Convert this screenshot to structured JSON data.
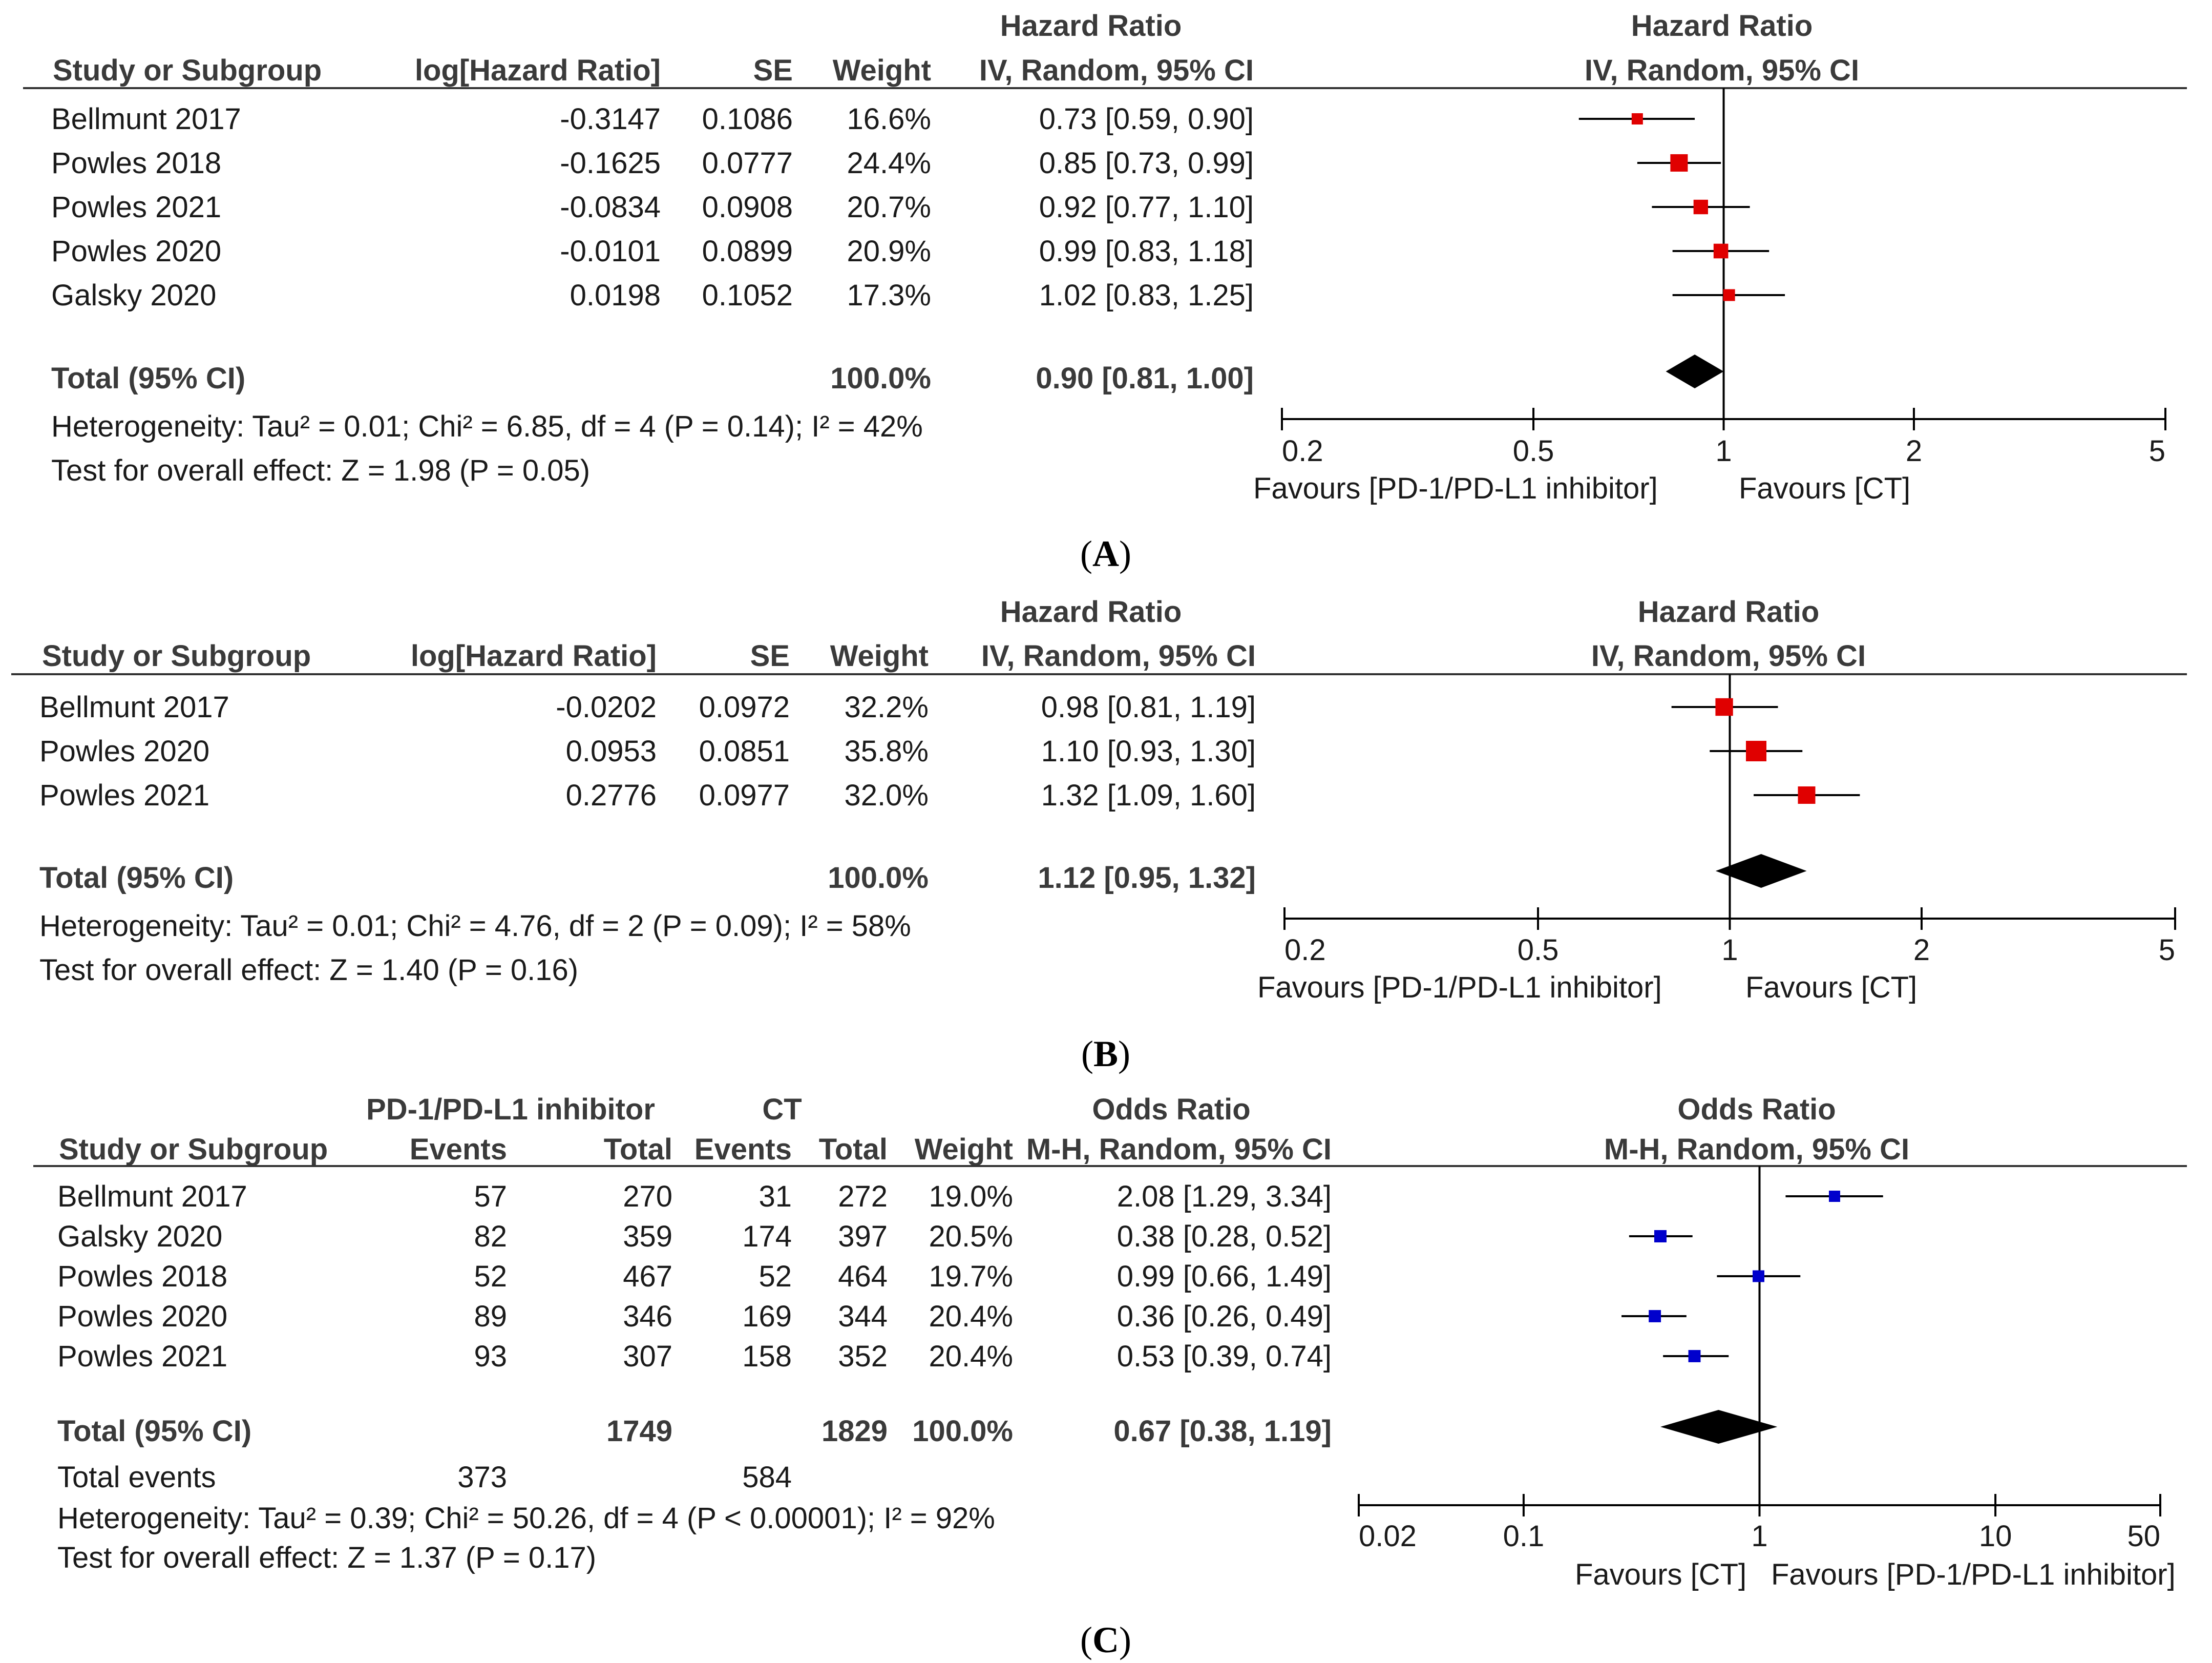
{
  "panel_labels": {
    "a": {
      "open": "(",
      "letter": "A",
      "close": ")"
    },
    "b": {
      "open": "(",
      "letter": "B",
      "close": ")"
    },
    "c": {
      "open": "(",
      "letter": "C",
      "close": ")"
    }
  },
  "chart_data": [
    {
      "type": "forest",
      "panel": "A",
      "effect_measure": "Hazard Ratio",
      "method": "IV, Random, 95% CI",
      "columns": {
        "study": "Study or Subgroup",
        "log": "log[Hazard Ratio]",
        "se": "SE",
        "weight": "Weight",
        "effect": "Hazard Ratio",
        "effect_method": "IV, Random, 95% CI"
      },
      "plot_header": {
        "title": "Hazard Ratio",
        "method": "IV, Random, 95% CI"
      },
      "studies": [
        {
          "name": "Bellmunt 2017",
          "log": "-0.3147",
          "se": "0.1086",
          "weight": "16.6%",
          "ci_text": "0.73 [0.59, 0.90]",
          "est": 0.73,
          "lo": 0.59,
          "hi": 0.9
        },
        {
          "name": "Powles 2018",
          "log": "-0.1625",
          "se": "0.0777",
          "weight": "24.4%",
          "ci_text": "0.85 [0.73, 0.99]",
          "est": 0.85,
          "lo": 0.73,
          "hi": 0.99
        },
        {
          "name": "Powles 2021",
          "log": "-0.0834",
          "se": "0.0908",
          "weight": "20.7%",
          "ci_text": "0.92 [0.77, 1.10]",
          "est": 0.92,
          "lo": 0.77,
          "hi": 1.1
        },
        {
          "name": "Powles 2020",
          "log": "-0.0101",
          "se": "0.0899",
          "weight": "20.9%",
          "ci_text": "0.99 [0.83, 1.18]",
          "est": 0.99,
          "lo": 0.83,
          "hi": 1.18
        },
        {
          "name": "Galsky 2020",
          "log": "0.0198",
          "se": "0.1052",
          "weight": "17.3%",
          "ci_text": "1.02 [0.83, 1.25]",
          "est": 1.02,
          "lo": 0.83,
          "hi": 1.25
        }
      ],
      "total": {
        "label": "Total (95% CI)",
        "weight": "100.0%",
        "ci_text": "0.90 [0.81, 1.00]",
        "est": 0.9,
        "lo": 0.81,
        "hi": 1.0
      },
      "heterogeneity": "Heterogeneity: Tau² = 0.01; Chi² = 6.85, df = 4 (P = 0.14); I² = 42%",
      "overall_effect": "Test for overall effect: Z = 1.98 (P = 0.05)",
      "axis": {
        "scale": "log",
        "ticks": [
          0.2,
          0.5,
          1,
          2,
          5
        ],
        "tick_labels": [
          "0.2",
          "0.5",
          "1",
          "2",
          "5"
        ],
        "range": [
          0.2,
          5
        ]
      },
      "favours_left": "Favours [PD-1/PD-L1 inhibitor]",
      "favours_right": "Favours [CT]",
      "marker_color": "#e00000"
    },
    {
      "type": "forest",
      "panel": "B",
      "effect_measure": "Hazard Ratio",
      "method": "IV, Random, 95% CI",
      "columns": {
        "study": "Study or Subgroup",
        "log": "log[Hazard Ratio]",
        "se": "SE",
        "weight": "Weight",
        "effect": "Hazard Ratio",
        "effect_method": "IV, Random, 95% CI"
      },
      "plot_header": {
        "title": "Hazard Ratio",
        "method": "IV, Random, 95% CI"
      },
      "studies": [
        {
          "name": "Bellmunt 2017",
          "log": "-0.0202",
          "se": "0.0972",
          "weight": "32.2%",
          "ci_text": "0.98 [0.81, 1.19]",
          "est": 0.98,
          "lo": 0.81,
          "hi": 1.19
        },
        {
          "name": "Powles 2020",
          "log": "0.0953",
          "se": "0.0851",
          "weight": "35.8%",
          "ci_text": "1.10 [0.93, 1.30]",
          "est": 1.1,
          "lo": 0.93,
          "hi": 1.3
        },
        {
          "name": "Powles 2021",
          "log": "0.2776",
          "se": "0.0977",
          "weight": "32.0%",
          "ci_text": "1.32 [1.09, 1.60]",
          "est": 1.32,
          "lo": 1.09,
          "hi": 1.6
        }
      ],
      "total": {
        "label": "Total (95% CI)",
        "weight": "100.0%",
        "ci_text": "1.12 [0.95, 1.32]",
        "est": 1.12,
        "lo": 0.95,
        "hi": 1.32
      },
      "heterogeneity": "Heterogeneity: Tau² = 0.01; Chi² = 4.76, df = 2 (P = 0.09); I² = 58%",
      "overall_effect": "Test for overall effect: Z = 1.40 (P = 0.16)",
      "axis": {
        "scale": "log",
        "ticks": [
          0.2,
          0.5,
          1,
          2,
          5
        ],
        "tick_labels": [
          "0.2",
          "0.5",
          "1",
          "2",
          "5"
        ],
        "range": [
          0.2,
          5
        ]
      },
      "favours_left": "Favours [PD-1/PD-L1 inhibitor]",
      "favours_right": "Favours [CT]",
      "marker_color": "#e00000"
    },
    {
      "type": "forest",
      "panel": "C",
      "effect_measure": "Odds Ratio",
      "method": "M-H, Random, 95% CI",
      "columns": {
        "group1": "PD-1/PD-L1 inhibitor",
        "group2": "CT",
        "study": "Study or Subgroup",
        "events": "Events",
        "total": "Total",
        "weight": "Weight",
        "effect": "Odds Ratio",
        "effect_method": "M-H, Random, 95% CI"
      },
      "plot_header": {
        "title": "Odds Ratio",
        "method": "M-H, Random, 95% CI"
      },
      "studies": [
        {
          "name": "Bellmunt 2017",
          "e1": "57",
          "n1": "270",
          "e2": "31",
          "n2": "272",
          "weight": "19.0%",
          "ci_text": "2.08 [1.29, 3.34]",
          "est": 2.08,
          "lo": 1.29,
          "hi": 3.34
        },
        {
          "name": "Galsky 2020",
          "e1": "82",
          "n1": "359",
          "e2": "174",
          "n2": "397",
          "weight": "20.5%",
          "ci_text": "0.38 [0.28, 0.52]",
          "est": 0.38,
          "lo": 0.28,
          "hi": 0.52
        },
        {
          "name": "Powles 2018",
          "e1": "52",
          "n1": "467",
          "e2": "52",
          "n2": "464",
          "weight": "19.7%",
          "ci_text": "0.99 [0.66, 1.49]",
          "est": 0.99,
          "lo": 0.66,
          "hi": 1.49
        },
        {
          "name": "Powles 2020",
          "e1": "89",
          "n1": "346",
          "e2": "169",
          "n2": "344",
          "weight": "20.4%",
          "ci_text": "0.36 [0.26, 0.49]",
          "est": 0.36,
          "lo": 0.26,
          "hi": 0.49
        },
        {
          "name": "Powles 2021",
          "e1": "93",
          "n1": "307",
          "e2": "158",
          "n2": "352",
          "weight": "20.4%",
          "ci_text": "0.53 [0.39, 0.74]",
          "est": 0.53,
          "lo": 0.39,
          "hi": 0.74
        }
      ],
      "total": {
        "label": "Total (95% CI)",
        "n1": "1749",
        "n2": "1829",
        "weight": "100.0%",
        "ci_text": "0.67 [0.38, 1.19]",
        "est": 0.67,
        "lo": 0.38,
        "hi": 1.19
      },
      "total_events": {
        "label": "Total events",
        "e1": "373",
        "e2": "584"
      },
      "heterogeneity": "Heterogeneity: Tau² = 0.39; Chi² = 50.26, df = 4 (P < 0.00001); I² = 92%",
      "overall_effect": "Test for overall effect: Z = 1.37 (P = 0.17)",
      "axis": {
        "scale": "log",
        "ticks": [
          0.02,
          0.1,
          1,
          10,
          50
        ],
        "tick_labels": [
          "0.02",
          "0.1",
          "1",
          "10",
          "50"
        ],
        "range": [
          0.02,
          50
        ]
      },
      "favours_left": "Favours [CT]",
      "favours_right": "Favours [PD-1/PD-L1 inhibitor]",
      "marker_color": "#0000cc"
    }
  ]
}
